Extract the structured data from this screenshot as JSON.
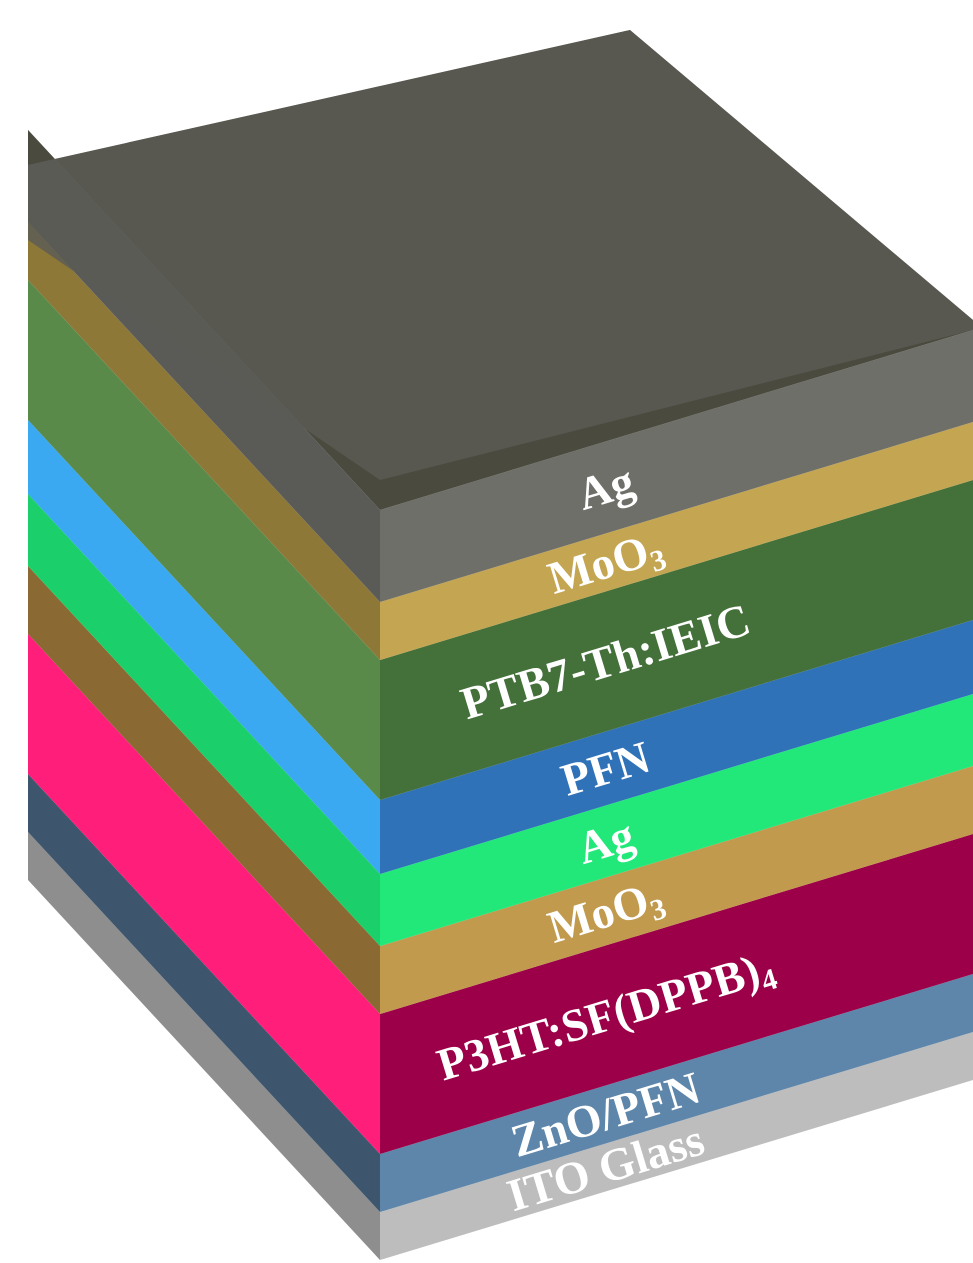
{
  "diagram": {
    "layers": [
      {
        "id": "ito-glass",
        "label": "ITO Glass",
        "front": "#bdbdbd",
        "side": "#8e8e8e",
        "top": "#cfcfcf"
      },
      {
        "id": "zno-pfn",
        "label": "ZnO/PFN",
        "front": "#5e86aa",
        "side": "#3e566d",
        "top": "#7ea2c4"
      },
      {
        "id": "p3ht-sf",
        "label": "P3HT:SF(DPPB)",
        "sub": "4",
        "front": "#9c0048",
        "side": "#ff1f7a",
        "top": "#c2005c"
      },
      {
        "id": "moo3-bottom",
        "label": "MoO",
        "sub": "3",
        "front": "#c19a4e",
        "side": "#8a6a32",
        "top": "#d8b468"
      },
      {
        "id": "ag-middle",
        "label": "Ag",
        "front": "#22e87a",
        "side": "#1bd06b",
        "top": "#4dff9d"
      },
      {
        "id": "pfn",
        "label": "PFN",
        "front": "#2f72b8",
        "side": "#3aa9f2",
        "top": "#4c95dd"
      },
      {
        "id": "ptb7-ieic",
        "label": "PTB7-Th:IEIC",
        "front": "#44703a",
        "side": "#5a8a4a",
        "top": "#6a9a55"
      },
      {
        "id": "moo3-top",
        "label": "MoO",
        "sub": "3",
        "front": "#c4a652",
        "side": "#8d7838",
        "top": "#d4b86a"
      },
      {
        "id": "ag-top",
        "label": "Ag",
        "front": "#6f6f6a",
        "side": "#5a5a57",
        "top": "#4b4a3e"
      }
    ]
  }
}
